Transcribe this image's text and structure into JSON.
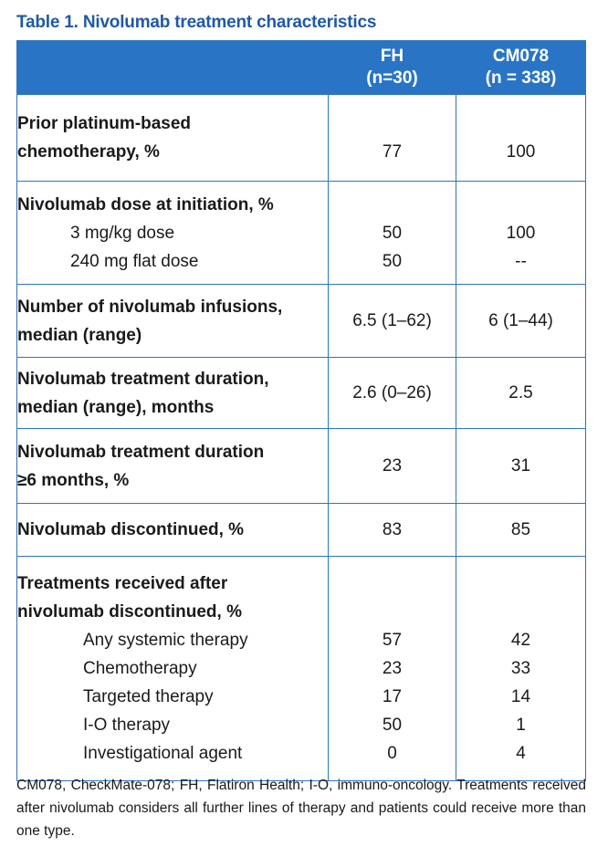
{
  "title": {
    "label": "Table 1.",
    "text": "Nivolumab treatment characteristics"
  },
  "header": {
    "col_fh": [
      "FH",
      "(n=30)"
    ],
    "col_cm": [
      "CM078",
      "(n = 338)"
    ]
  },
  "rows": [
    {
      "label": [
        "Prior platinum-based",
        "chemotherapy, %"
      ],
      "fh": "77",
      "cm": "100"
    },
    {
      "label": [
        "Nivolumab dose at initiation, %"
      ],
      "sub": [
        {
          "label": "3 mg/kg dose",
          "fh": "50",
          "cm": "100"
        },
        {
          "label": "240 mg flat dose",
          "fh": "50",
          "cm": "--"
        }
      ]
    },
    {
      "label": [
        "Number of nivolumab infusions,",
        "median (range)"
      ],
      "fh": "6.5 (1–62)",
      "cm": "6 (1–44)"
    },
    {
      "label": [
        "Nivolumab treatment duration,",
        "median (range), months"
      ],
      "fh": "2.6 (0–26)",
      "cm": "2.5"
    },
    {
      "label": [
        "Nivolumab treatment duration",
        "≥6 months, %"
      ],
      "fh": "23",
      "cm": "31"
    },
    {
      "label": [
        "Nivolumab discontinued, %"
      ],
      "fh": "83",
      "cm": "85"
    },
    {
      "label": [
        "Treatments received after",
        "nivolumab discontinued, %"
      ],
      "sub": [
        {
          "label": "Any systemic therapy",
          "fh": "57",
          "cm": "42"
        },
        {
          "label": "Chemotherapy",
          "fh": "23",
          "cm": "33"
        },
        {
          "label": "Targeted therapy",
          "fh": "17",
          "cm": "14"
        },
        {
          "label": "I-O therapy",
          "fh": "50",
          "cm": "1"
        },
        {
          "label": "Investigational agent",
          "fh": "0",
          "cm": "4"
        }
      ]
    }
  ],
  "footnote": "CM078, CheckMate-078; FH, Flatiron Health; I-O, immuno-oncology. Treatments received after nivolumab considers all further lines of therapy and patients could receive more than one type.",
  "colors": {
    "header_bg": "#2a74c5",
    "border": "#2e74c0",
    "title": "#1f5aa3"
  }
}
